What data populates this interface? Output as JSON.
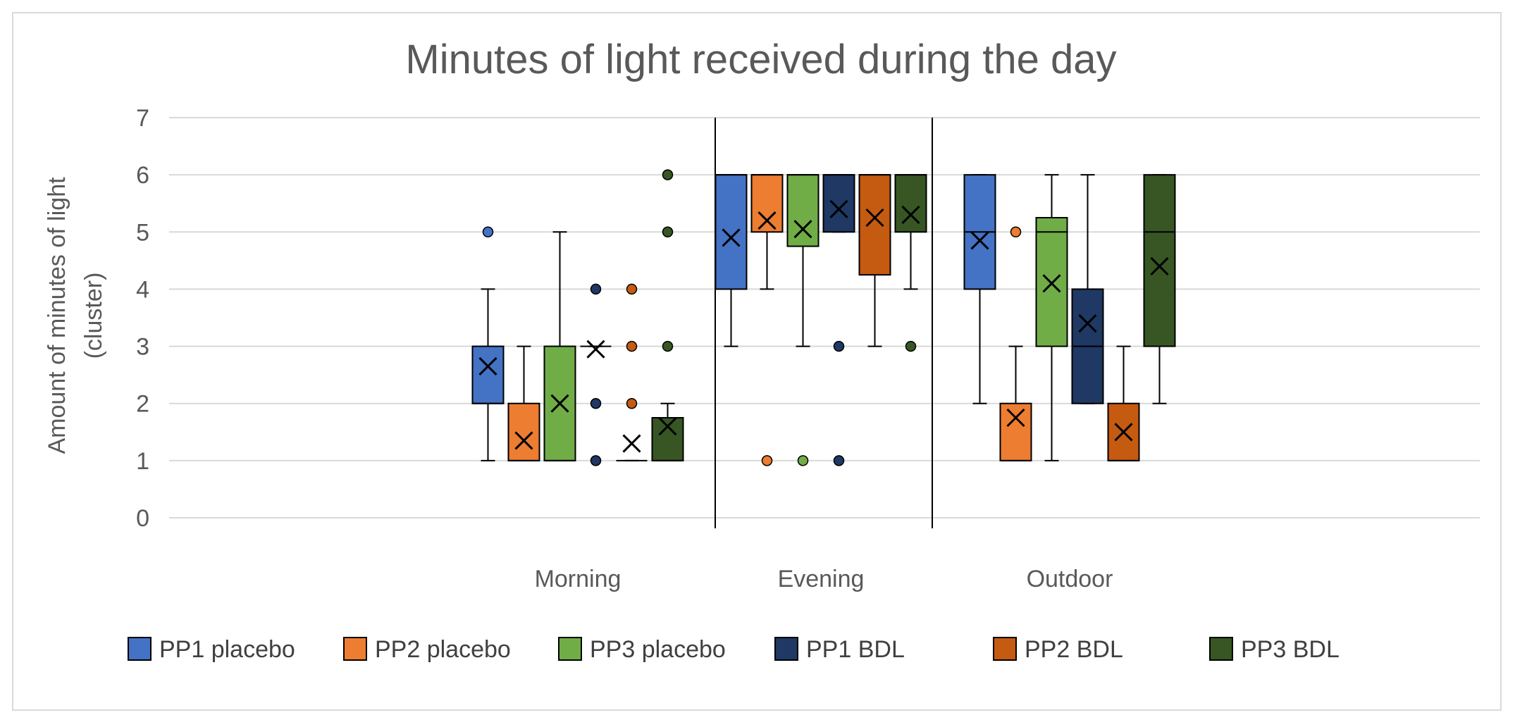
{
  "chart_data": {
    "type": "box",
    "title": "Minutes of light received during the day",
    "ylabel_lines": [
      "Amount of minutes of light",
      "(cluster)"
    ],
    "xlabel": "",
    "ylim": [
      0,
      7
    ],
    "yticks": [
      0,
      1,
      2,
      3,
      4,
      5,
      6,
      7
    ],
    "ytick_labels": [
      "0",
      "1",
      "2",
      "3",
      "4",
      "5",
      "6",
      "7"
    ],
    "grid": true,
    "legend_position": "bottom",
    "categories": [
      "Morning",
      "Evening",
      "Outdoor"
    ],
    "series": [
      {
        "name": "PP1 placebo",
        "color": "#4472C4",
        "boxes": [
          {
            "category": "Morning",
            "min": 1,
            "q1": 2,
            "median": 2,
            "q3": 3,
            "max": 4,
            "mean": 2.65,
            "outliers": [
              5
            ]
          },
          {
            "category": "Evening",
            "min": 3,
            "q1": 4,
            "median": 6,
            "q3": 6,
            "max": 6,
            "mean": 4.9,
            "outliers": []
          },
          {
            "category": "Outdoor",
            "min": 2,
            "q1": 4,
            "median": 5,
            "q3": 6,
            "max": 6,
            "mean": 4.85,
            "outliers": []
          }
        ]
      },
      {
        "name": "PP2 placebo",
        "color": "#ED7D31",
        "boxes": [
          {
            "category": "Morning",
            "min": 1,
            "q1": 1,
            "median": 1,
            "q3": 2,
            "max": 3,
            "mean": 1.35,
            "outliers": []
          },
          {
            "category": "Evening",
            "min": 4,
            "q1": 5,
            "median": 6,
            "q3": 6,
            "max": 6,
            "mean": 5.2,
            "outliers": [
              1
            ]
          },
          {
            "category": "Outdoor",
            "min": 1,
            "q1": 1,
            "median": 1,
            "q3": 2,
            "max": 3,
            "mean": 1.75,
            "outliers": [
              5
            ]
          }
        ]
      },
      {
        "name": "PP3 placebo",
        "color": "#70AD47",
        "boxes": [
          {
            "category": "Morning",
            "min": 1,
            "q1": 1,
            "median": 1,
            "q3": 3,
            "max": 5,
            "mean": 2.0,
            "outliers": []
          },
          {
            "category": "Evening",
            "min": 3,
            "q1": 4.75,
            "median": 6,
            "q3": 6,
            "max": 6,
            "mean": 5.05,
            "outliers": [
              1
            ]
          },
          {
            "category": "Outdoor",
            "min": 1,
            "q1": 3,
            "median": 5,
            "q3": 5.25,
            "max": 6,
            "mean": 4.1,
            "outliers": []
          }
        ]
      },
      {
        "name": "PP1 BDL",
        "color": "#1F3864",
        "boxes": [
          {
            "category": "Morning",
            "min": 3,
            "q1": 3,
            "median": 3,
            "q3": 3,
            "max": 3,
            "mean": 2.95,
            "outliers": [
              1,
              2,
              4
            ]
          },
          {
            "category": "Evening",
            "min": 5,
            "q1": 5,
            "median": 6,
            "q3": 6,
            "max": 6,
            "mean": 5.4,
            "outliers": [
              1,
              3
            ]
          },
          {
            "category": "Outdoor",
            "min": 2,
            "q1": 2,
            "median": 3,
            "q3": 4,
            "max": 6,
            "mean": 3.4,
            "outliers": []
          }
        ]
      },
      {
        "name": "PP2 BDL",
        "color": "#C55A11",
        "boxes": [
          {
            "category": "Morning",
            "min": 1,
            "q1": 1,
            "median": 1,
            "q3": 1,
            "max": 1,
            "mean": 1.3,
            "outliers": [
              2,
              3,
              4
            ]
          },
          {
            "category": "Evening",
            "min": 3,
            "q1": 4.25,
            "median": 6,
            "q3": 6,
            "max": 6,
            "mean": 5.25,
            "outliers": []
          },
          {
            "category": "Outdoor",
            "min": 1,
            "q1": 1,
            "median": 1,
            "q3": 2,
            "max": 3,
            "mean": 1.5,
            "outliers": []
          }
        ]
      },
      {
        "name": "PP3 BDL",
        "color": "#375623",
        "boxes": [
          {
            "category": "Morning",
            "min": 1,
            "q1": 1,
            "median": 1,
            "q3": 1.75,
            "max": 2,
            "mean": 1.6,
            "outliers": [
              3,
              5,
              6
            ]
          },
          {
            "category": "Evening",
            "min": 4,
            "q1": 5,
            "median": 6,
            "q3": 6,
            "max": 6,
            "mean": 5.3,
            "outliers": [
              3
            ]
          },
          {
            "category": "Outdoor",
            "min": 2,
            "q1": 3,
            "median": 5,
            "q3": 6,
            "max": 6,
            "mean": 4.4,
            "outliers": []
          }
        ]
      }
    ]
  }
}
